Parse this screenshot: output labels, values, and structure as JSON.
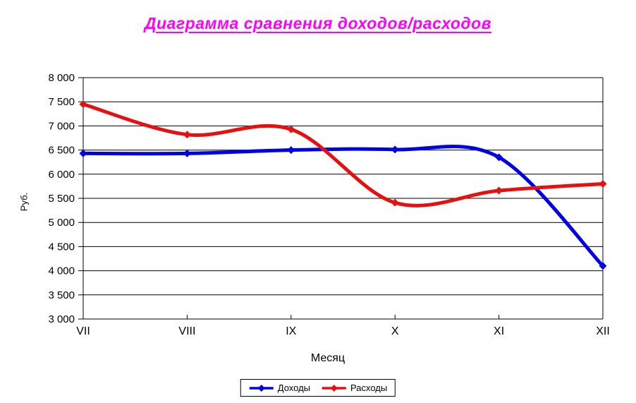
{
  "chart_data": {
    "type": "line",
    "title": "Диаграмма сравнения доходов/расходов",
    "title_color": "#FF00FF",
    "xlabel": "Месяц",
    "ylabel": "Руб.",
    "categories": [
      "VII",
      "VIII",
      "IX",
      "X",
      "XI",
      "XII"
    ],
    "series": [
      {
        "name": "Доходы",
        "color": "#0000E6",
        "values": [
          6430,
          6430,
          6500,
          6510,
          6350,
          4100
        ]
      },
      {
        "name": "Расходы",
        "color": "#E61010",
        "values": [
          7450,
          6820,
          6930,
          5410,
          5660,
          5800
        ]
      }
    ],
    "ylim": [
      3000,
      8000
    ],
    "ystep": 500,
    "ytick_labels": [
      "3 000",
      "3 500",
      "4 000",
      "4 500",
      "5 000",
      "5 500",
      "6 000",
      "6 500",
      "7 000",
      "7 500",
      "8 000"
    ],
    "grid": true,
    "smoothed": true,
    "marker": "diamond",
    "legend_position": "bottom"
  }
}
